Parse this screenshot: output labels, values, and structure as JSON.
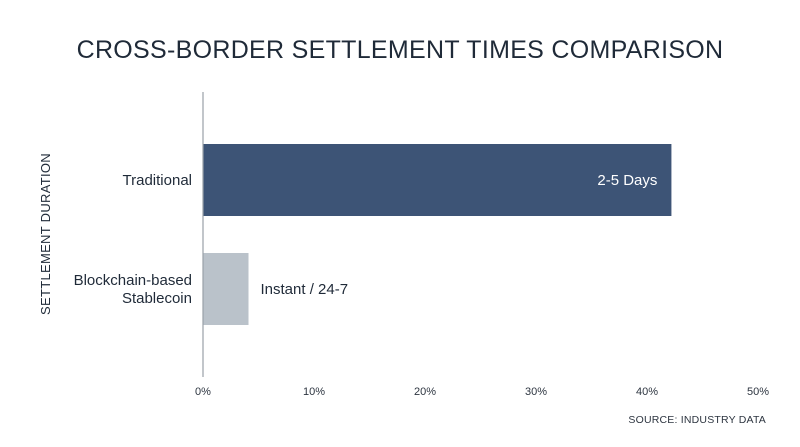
{
  "chart_data": {
    "type": "bar",
    "orientation": "horizontal",
    "title": "CROSS-BORDER SETTLEMENT TIMES COMPARISON",
    "ylabel": "SETTLEMENT DURATION",
    "xlabel": "",
    "categories": [
      [
        "Traditional"
      ],
      [
        "Blockchain-based",
        "Stablecoin"
      ]
    ],
    "values": [
      42.2,
      4.1
    ],
    "data_labels": [
      "2-5 Days",
      "Instant / 24-7"
    ],
    "xlim": [
      0,
      50
    ],
    "x_ticks": [
      "0%",
      "10%",
      "20%",
      "30%",
      "40%",
      "50%"
    ],
    "colors": [
      "#3d5476",
      "#bac2ca"
    ],
    "grid": false,
    "source": "SOURCE: INDUSTRY DATA"
  }
}
